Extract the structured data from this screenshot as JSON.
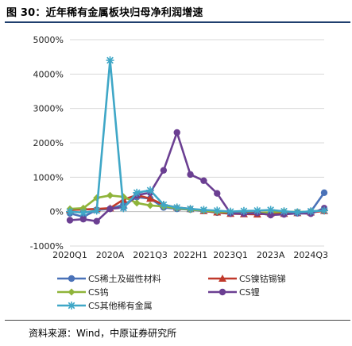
{
  "header": {
    "title": "图 30：近年稀有金属板块归母净利润增速"
  },
  "footer": {
    "source": "资料来源：Wind，中原证券研究所"
  },
  "chart_data": {
    "type": "line",
    "title": "",
    "xlabel": "",
    "ylabel": "",
    "ylim": [
      -1000,
      5000
    ],
    "yticks": [
      -1000,
      0,
      1000,
      2000,
      3000,
      4000,
      5000
    ],
    "ytick_labels": [
      "-1000%",
      "0%",
      "1000%",
      "2000%",
      "3000%",
      "4000%",
      "5000%"
    ],
    "grid": true,
    "legend_position": "bottom",
    "categories": [
      "2020Q1",
      "2020H1",
      "2020Q3",
      "2020A",
      "2021Q1",
      "2021H1",
      "2021Q3",
      "2021A",
      "2022Q1",
      "2022H1",
      "2022Q3",
      "2022A",
      "2023Q1",
      "2023H1",
      "2023Q3",
      "2023A",
      "2024Q1",
      "2024H1",
      "2024Q3",
      "2024A"
    ],
    "xtick_labels": [
      {
        "index": 0,
        "label": "2020Q1"
      },
      {
        "index": 3,
        "label": "2020A"
      },
      {
        "index": 6,
        "label": "2021Q3"
      },
      {
        "index": 9,
        "label": "2022H1"
      },
      {
        "index": 12,
        "label": "2023Q1"
      },
      {
        "index": 15,
        "label": "2023A"
      },
      {
        "index": 18,
        "label": "2024Q3"
      }
    ],
    "series": [
      {
        "name": "CS稀土及磁性材料",
        "color": "#4a72b8",
        "marker": "circle",
        "values": [
          -50,
          -150,
          50,
          80,
          200,
          420,
          380,
          120,
          80,
          60,
          20,
          -30,
          -60,
          -40,
          -30,
          -80,
          -40,
          -20,
          0,
          550
        ]
      },
      {
        "name": "CS镍钴锡锑",
        "color": "#c0392b",
        "marker": "triangle",
        "values": [
          50,
          60,
          80,
          100,
          350,
          480,
          380,
          200,
          120,
          80,
          20,
          -20,
          -60,
          -70,
          -80,
          -50,
          -60,
          -40,
          -20,
          20
        ]
      },
      {
        "name": "CS钨",
        "color": "#8fb43a",
        "marker": "diamond",
        "values": [
          80,
          100,
          400,
          470,
          430,
          250,
          180,
          150,
          100,
          60,
          30,
          0,
          -20,
          -30,
          -40,
          -20,
          0,
          -10,
          0,
          50
        ]
      },
      {
        "name": "CS锂",
        "color": "#6b3f92",
        "marker": "circle",
        "values": [
          -250,
          -220,
          -280,
          80,
          120,
          480,
          550,
          1200,
          2300,
          1080,
          900,
          530,
          -50,
          -60,
          -40,
          -100,
          -80,
          -50,
          -60,
          100
        ]
      },
      {
        "name": "CS其他稀有金属",
        "color": "#3fa7c7",
        "marker": "star",
        "values": [
          0,
          -30,
          30,
          4400,
          100,
          550,
          620,
          200,
          120,
          80,
          50,
          30,
          0,
          20,
          30,
          50,
          10,
          -20,
          10,
          30
        ]
      }
    ]
  }
}
